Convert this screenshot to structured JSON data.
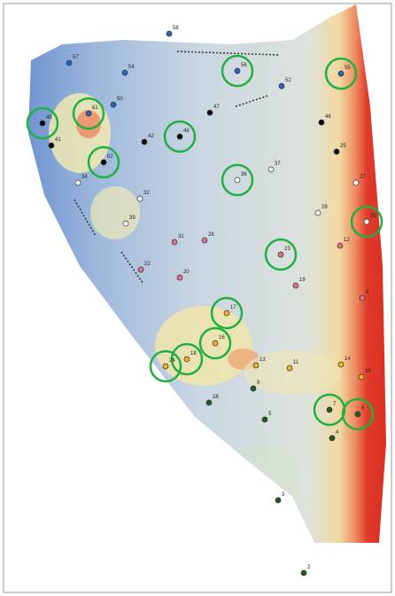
{
  "points": [
    {
      "label": "58",
      "color": "#2a62c0",
      "circled": false
    },
    {
      "label": "57",
      "color": "#2a62c0",
      "circled": false
    },
    {
      "label": "54",
      "color": "#2a62c0",
      "circled": false
    },
    {
      "label": "56",
      "color": "#2a62c0",
      "circled": true
    },
    {
      "label": "55",
      "color": "#2a62c0",
      "circled": true
    },
    {
      "label": "52",
      "color": "#2a62c0",
      "circled": false
    },
    {
      "label": "50",
      "color": "#2a62c0",
      "circled": false
    },
    {
      "label": "61",
      "color": "#2a62c0",
      "circled": true
    },
    {
      "label": "45",
      "color": "#000000",
      "circled": true
    },
    {
      "label": "47",
      "color": "#000000",
      "circled": false
    },
    {
      "label": "46",
      "color": "#000000",
      "circled": false
    },
    {
      "label": "42",
      "color": "#000000",
      "circled": false
    },
    {
      "label": "48",
      "color": "#000000",
      "circled": true
    },
    {
      "label": "41",
      "color": "#000000",
      "circled": false
    },
    {
      "label": "62",
      "color": "#000000",
      "circled": true
    },
    {
      "label": "25",
      "color": "#000000",
      "circled": false
    },
    {
      "label": "36",
      "color": "#ffffff",
      "circled": true
    },
    {
      "label": "37",
      "color": "#ffffff",
      "circled": false
    },
    {
      "label": "34",
      "color": "#ffffff",
      "circled": false
    },
    {
      "label": "27",
      "color": "#ffffff",
      "circled": false
    },
    {
      "label": "32",
      "color": "#ffffff",
      "circled": false
    },
    {
      "label": "29",
      "color": "#ffffff",
      "circled": false
    },
    {
      "label": "35",
      "color": "#ffffff",
      "circled": true
    },
    {
      "label": "39",
      "color": "#ffffff",
      "circled": false
    },
    {
      "label": "26",
      "color": "#e07088",
      "circled": false
    },
    {
      "label": "31",
      "color": "#e07088",
      "circled": false
    },
    {
      "label": "12",
      "color": "#e07088",
      "circled": false
    },
    {
      "label": "23",
      "color": "#e07088",
      "circled": true
    },
    {
      "label": "22",
      "color": "#e07088",
      "circled": false
    },
    {
      "label": "20",
      "color": "#e07088",
      "circled": false
    },
    {
      "label": "19",
      "color": "#e07088",
      "circled": false
    },
    {
      "label": "8",
      "color": "#e07088",
      "circled": false
    },
    {
      "label": "17",
      "color": "#f0b020",
      "circled": true
    },
    {
      "label": "16",
      "color": "#f0b020",
      "circled": true
    },
    {
      "label": "18",
      "color": "#f0b020",
      "circled": true
    },
    {
      "label": "24",
      "color": "#f0b020",
      "circled": true
    },
    {
      "label": "13",
      "color": "#f0b020",
      "circled": false
    },
    {
      "label": "11",
      "color": "#f0b020",
      "circled": false
    },
    {
      "label": "14",
      "color": "#f0b020",
      "circled": false
    },
    {
      "label": "10",
      "color": "#f0b020",
      "circled": false
    },
    {
      "label": "9",
      "color": "#1f5a1f",
      "circled": false
    },
    {
      "label": "28",
      "color": "#1f5a1f",
      "circled": false
    },
    {
      "label": "7",
      "color": "#1f5a1f",
      "circled": true
    },
    {
      "label": "6",
      "color": "#1f5a1f",
      "circled": true
    },
    {
      "label": "5",
      "color": "#1f5a1f",
      "circled": false
    },
    {
      "label": "4",
      "color": "#1f5a1f",
      "circled": false
    },
    {
      "label": "3",
      "color": "#1f5a1f",
      "circled": false
    },
    {
      "label": "2",
      "color": "#1f5a1f",
      "circled": false
    }
  ]
}
